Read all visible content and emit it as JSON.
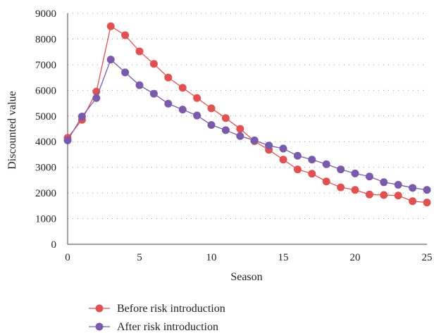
{
  "chart_data": {
    "type": "line",
    "xlabel": "Season",
    "ylabel": "Discounted value",
    "xlim": [
      0,
      25
    ],
    "ylim": [
      0,
      9000
    ],
    "x_ticks": [
      "0",
      "5",
      "10",
      "15",
      "20",
      "25"
    ],
    "y_ticks": [
      "0",
      "1000",
      "2000",
      "3000",
      "4000",
      "5000",
      "6000",
      "7000",
      "8000",
      "9000"
    ],
    "grid": "horizontal-dotted",
    "legend_position": "bottom",
    "x": [
      0,
      1,
      2,
      3,
      4,
      5,
      6,
      7,
      8,
      9,
      10,
      11,
      12,
      13,
      14,
      15,
      16,
      17,
      18,
      19,
      20,
      21,
      22,
      23,
      24,
      25
    ],
    "series": [
      {
        "name": "Before risk introduction",
        "color": "#e05252",
        "values": [
          4150,
          4850,
          5950,
          8500,
          8150,
          7520,
          7030,
          6500,
          6100,
          5700,
          5300,
          4920,
          4500,
          4020,
          3680,
          3300,
          2920,
          2750,
          2450,
          2220,
          2120,
          1940,
          1920,
          1900,
          1680,
          1630
        ]
      },
      {
        "name": "After risk introduction",
        "color": "#7a5bab",
        "values": [
          4050,
          4980,
          5700,
          7200,
          6700,
          6200,
          5870,
          5480,
          5250,
          5020,
          4650,
          4450,
          4220,
          4050,
          3850,
          3730,
          3450,
          3300,
          3120,
          2920,
          2760,
          2640,
          2420,
          2320,
          2200,
          2120
        ]
      }
    ]
  }
}
